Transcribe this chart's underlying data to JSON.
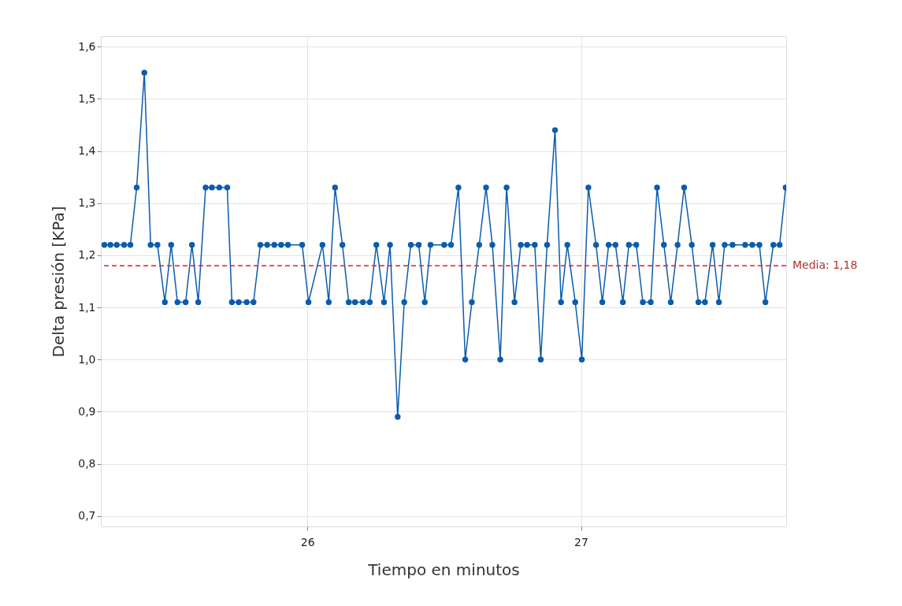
{
  "chart_data": {
    "type": "line",
    "xlabel": "Tiempo en minutos",
    "ylabel": "Delta presión [KPa]",
    "x": [
      25.258,
      25.28,
      25.303,
      25.33,
      25.353,
      25.376,
      25.404,
      25.427,
      25.452,
      25.479,
      25.502,
      25.525,
      25.555,
      25.578,
      25.601,
      25.628,
      25.651,
      25.678,
      25.707,
      25.724,
      25.749,
      25.778,
      25.803,
      25.828,
      25.853,
      25.879,
      25.904,
      25.929,
      25.981,
      26.004,
      26.055,
      26.078,
      26.101,
      26.128,
      26.151,
      26.174,
      26.203,
      26.228,
      26.252,
      26.28,
      26.302,
      26.33,
      26.354,
      26.378,
      26.407,
      26.429,
      26.45,
      26.5,
      26.525,
      26.552,
      26.577,
      26.601,
      26.628,
      26.653,
      26.676,
      26.705,
      26.728,
      26.757,
      26.78,
      26.803,
      26.831,
      26.853,
      26.876,
      26.905,
      26.927,
      26.95,
      26.979,
      27.003,
      27.027,
      27.055,
      27.078,
      27.101,
      27.126,
      27.153,
      27.175,
      27.202,
      27.226,
      27.255,
      27.278,
      27.303,
      27.328,
      27.353,
      27.377,
      27.405,
      27.429,
      27.453,
      27.481,
      27.504,
      27.525,
      27.554,
      27.6,
      27.626,
      27.652,
      27.674,
      27.703,
      27.726,
      27.748
    ],
    "series": [
      {
        "color": "#0b5cad",
        "values": [
          1.22,
          1.22,
          1.22,
          1.22,
          1.22,
          1.33,
          1.55,
          1.22,
          1.22,
          1.11,
          1.22,
          1.11,
          1.11,
          1.22,
          1.11,
          1.33,
          1.33,
          1.33,
          1.33,
          1.11,
          1.11,
          1.11,
          1.11,
          1.22,
          1.22,
          1.22,
          1.22,
          1.22,
          1.22,
          1.11,
          1.22,
          1.11,
          1.33,
          1.22,
          1.11,
          1.11,
          1.11,
          1.11,
          1.22,
          1.11,
          1.22,
          0.89,
          1.11,
          1.22,
          1.22,
          1.11,
          1.22,
          1.22,
          1.22,
          1.33,
          1.0,
          1.11,
          1.22,
          1.33,
          1.22,
          1.0,
          1.33,
          1.11,
          1.22,
          1.22,
          1.22,
          1.0,
          1.22,
          1.44,
          1.11,
          1.22,
          1.11,
          1.0,
          1.33,
          1.22,
          1.11,
          1.22,
          1.22,
          1.11,
          1.22,
          1.22,
          1.11,
          1.11,
          1.33,
          1.22,
          1.11,
          1.22,
          1.33,
          1.22,
          1.11,
          1.11,
          1.22,
          1.11,
          1.22,
          1.22,
          1.22,
          1.22,
          1.22,
          1.11,
          1.22,
          1.22,
          1.33
        ]
      }
    ],
    "xlim": [
      25.245,
      27.75
    ],
    "xticks": [
      26,
      27
    ],
    "ylim": [
      0.68,
      1.62
    ],
    "yticks": [
      {
        "value": 0.7,
        "label": "0,7"
      },
      {
        "value": 0.8,
        "label": "0,8"
      },
      {
        "value": 0.9,
        "label": "0,9"
      },
      {
        "value": 1.0,
        "label": "1,0"
      },
      {
        "value": 1.1,
        "label": "1,1"
      },
      {
        "value": 1.2,
        "label": "1,2"
      },
      {
        "value": 1.3,
        "label": "1,3"
      },
      {
        "value": 1.4,
        "label": "1,4"
      },
      {
        "value": 1.5,
        "label": "1,5"
      },
      {
        "value": 1.6,
        "label": "1,6"
      }
    ],
    "ref_lines": [
      {
        "axis": "y",
        "value": 1.18,
        "label": "Media: 1,18",
        "color": "#e02020",
        "line_style": "dashed"
      }
    ],
    "grid": true,
    "marker": "circle"
  }
}
